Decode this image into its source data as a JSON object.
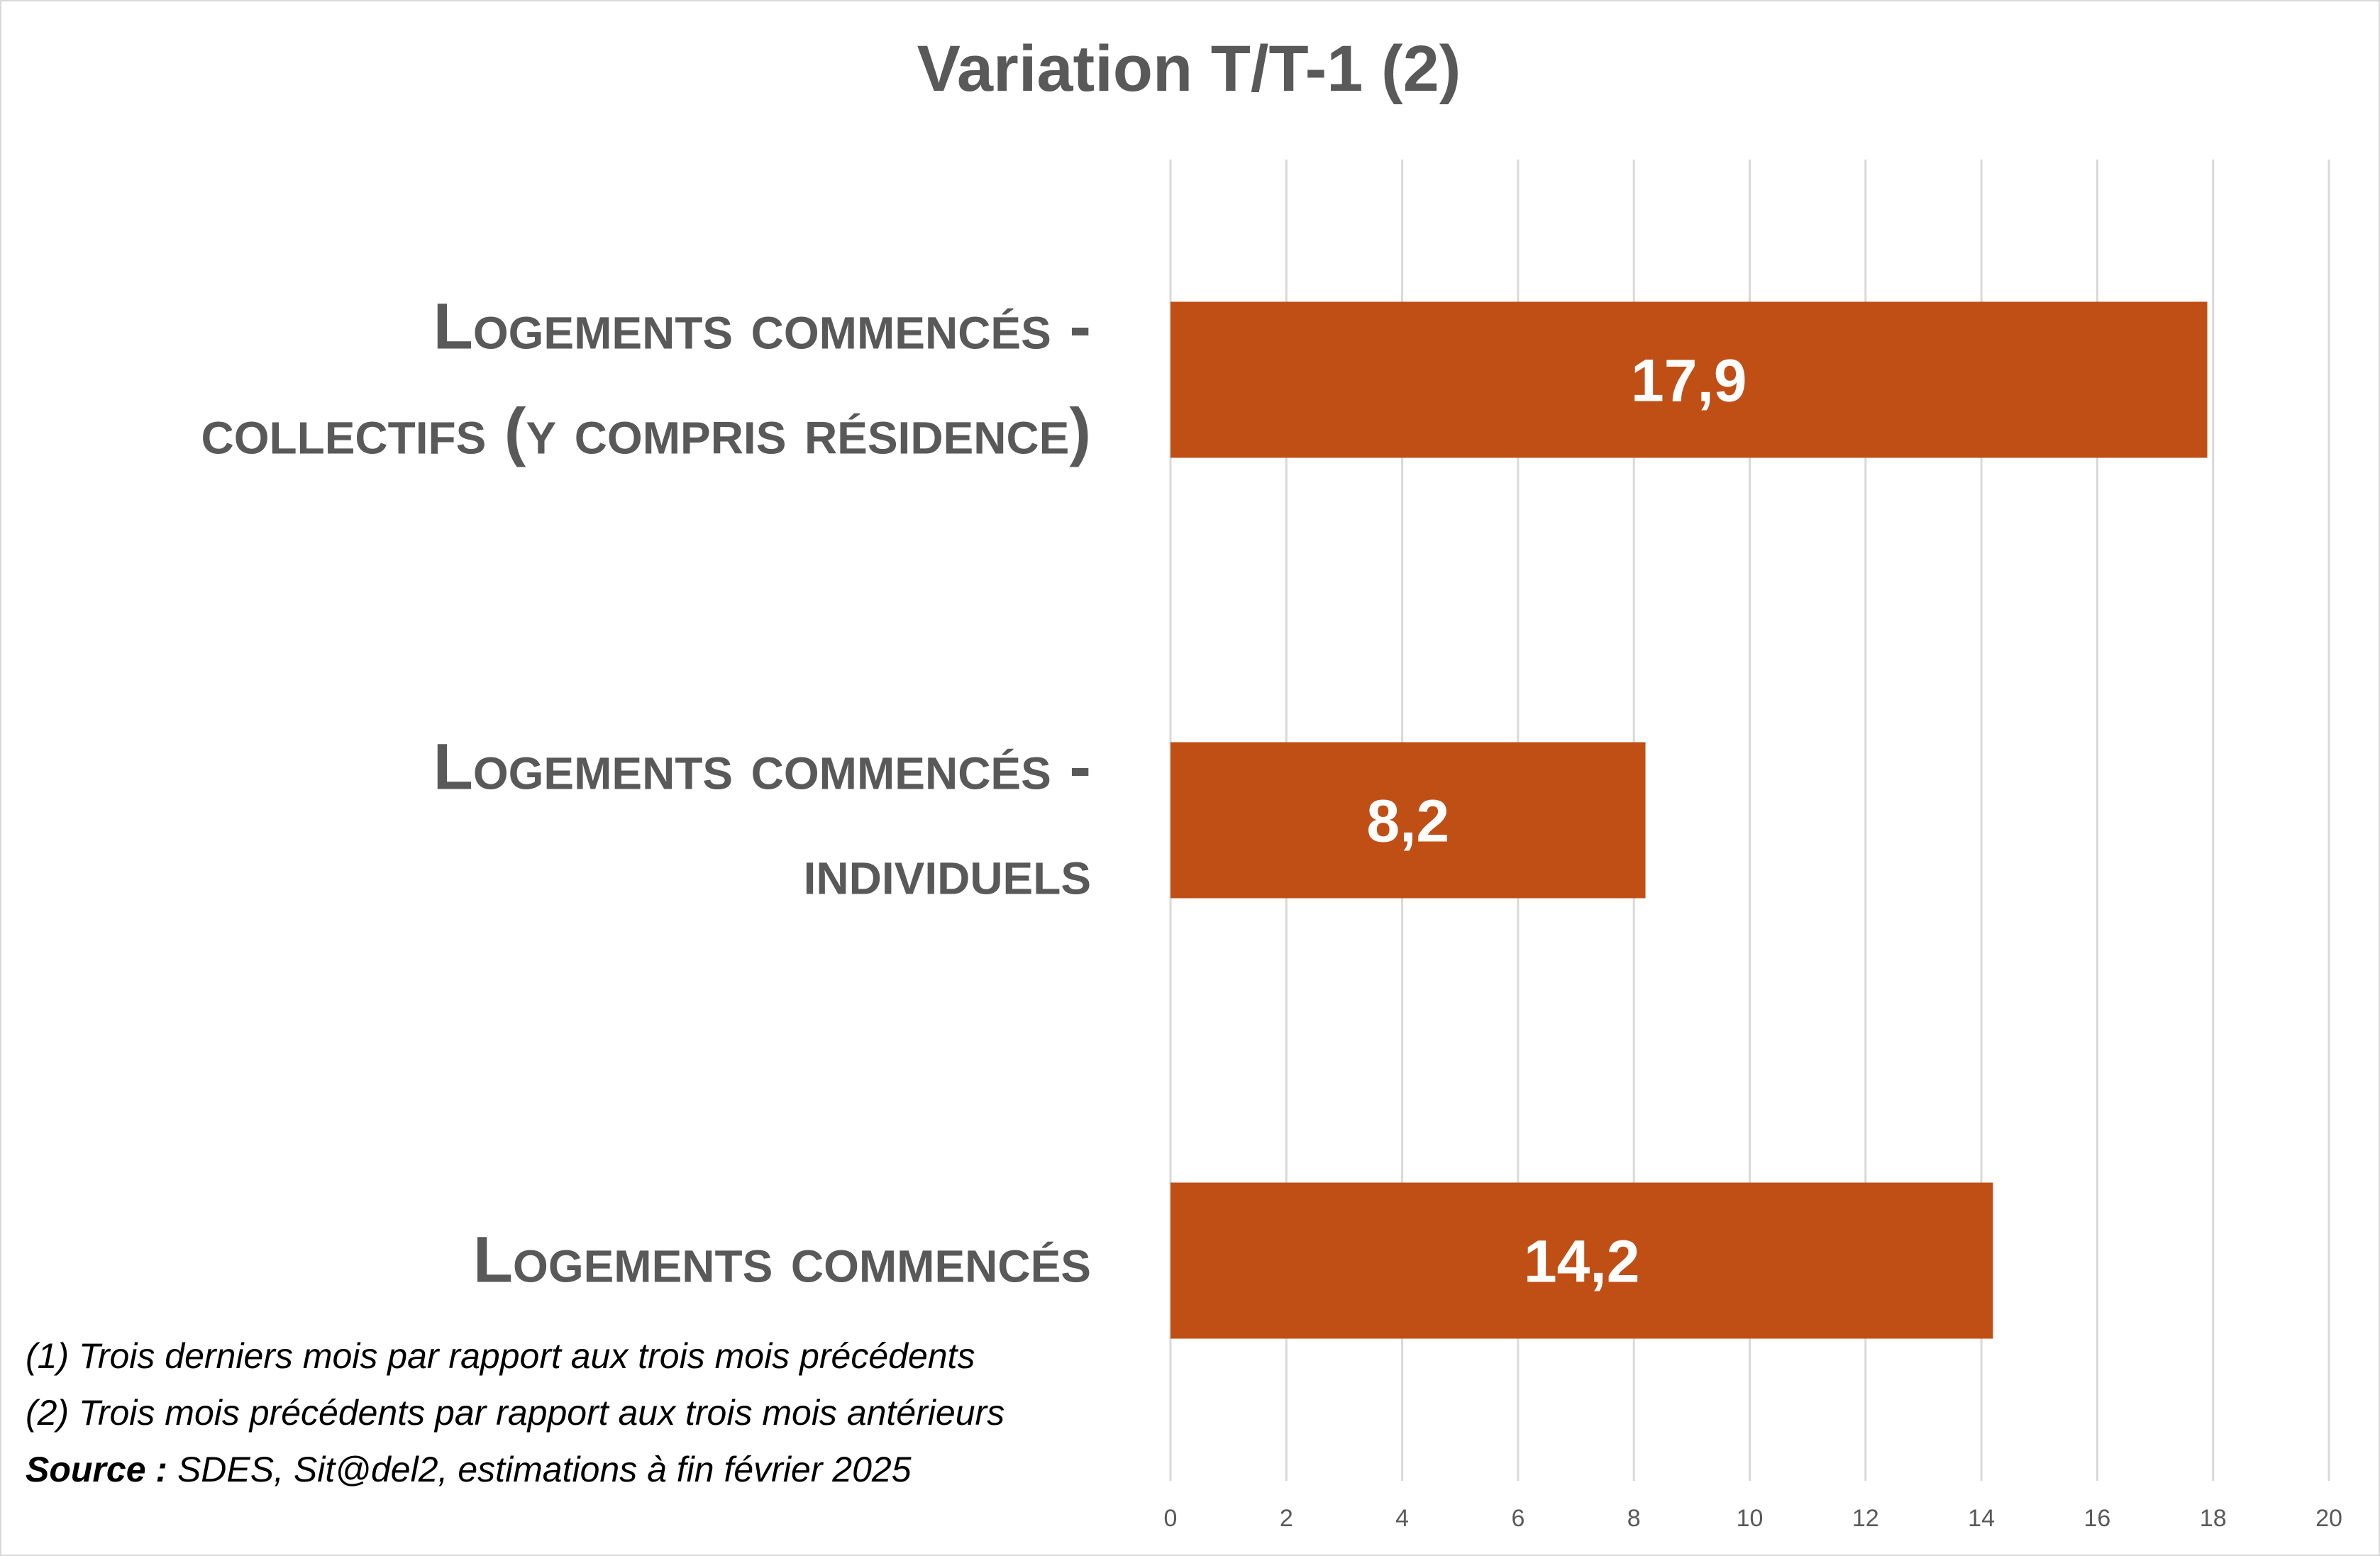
{
  "chart_data": {
    "type": "bar",
    "orientation": "horizontal",
    "title": "Variation T/T-1 (2)",
    "categories": [
      [
        "Logements commencés -",
        "collectifs (y compris résidence)"
      ],
      [
        "Logements commencés -",
        "individuels"
      ],
      [
        "Logements commencés"
      ]
    ],
    "values": [
      17.9,
      8.2,
      14.2
    ],
    "data_labels": [
      "17,9",
      "8,2",
      "14,2"
    ],
    "xlim": [
      0,
      20
    ],
    "xticks": [
      0,
      2,
      4,
      6,
      8,
      10,
      12,
      14,
      16,
      18,
      20
    ],
    "grid": "vertical",
    "legend": "none",
    "bar_color": "#C04F15"
  },
  "notes": {
    "line1": "(1) Trois derniers mois par rapport aux trois mois précédents",
    "line2": "(2) Trois mois précédents par rapport aux trois mois antérieurs",
    "source_label": "Source :",
    "source_text": " SDES, Sit@del2, estimations à fin février 2025"
  }
}
